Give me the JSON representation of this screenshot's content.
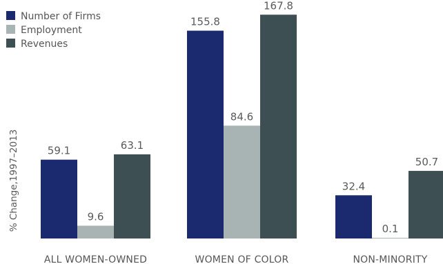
{
  "chart_data": {
    "type": "bar",
    "categories": [
      "ALL WOMEN-OWNED",
      "WOMEN OF COLOR",
      "NON-MINORITY"
    ],
    "series": [
      {
        "name": "Number of Firms",
        "values": [
          59.1,
          155.8,
          32.4
        ],
        "color": "#1b2a6e"
      },
      {
        "name": "Employment",
        "values": [
          9.6,
          84.6,
          0.1
        ],
        "color": "#a8b4b4"
      },
      {
        "name": "Revenues",
        "values": [
          63.1,
          167.8,
          50.7
        ],
        "color": "#3e4f54"
      }
    ],
    "ylabel": "% Change,1997–2013",
    "legend_position": "top-left",
    "grid": false
  }
}
